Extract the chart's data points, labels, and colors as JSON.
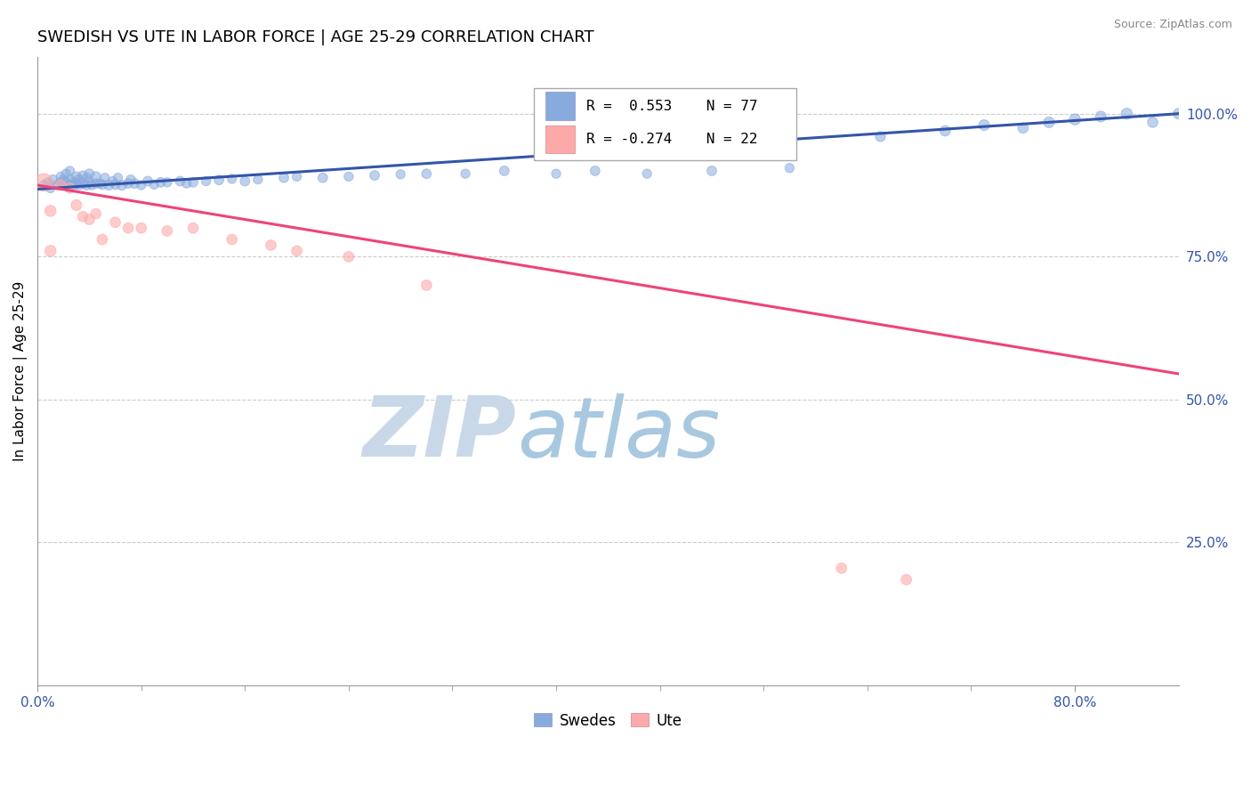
{
  "title": "SWEDISH VS UTE IN LABOR FORCE | AGE 25-29 CORRELATION CHART",
  "source": "Source: ZipAtlas.com",
  "xlabel_ticks_pos": [
    0.0,
    0.8
  ],
  "xlabel_ticks_labels": [
    "0.0%",
    "80.0%"
  ],
  "ylabel_label": "In Labor Force | Age 25-29",
  "right_yticks": [
    1.0,
    0.75,
    0.5,
    0.25
  ],
  "right_ytick_labels": [
    "100.0%",
    "75.0%",
    "50.0%",
    "25.0%"
  ],
  "xlim": [
    0.0,
    0.88
  ],
  "ylim": [
    0.0,
    1.1
  ],
  "legend_blue_label": "Swedes",
  "legend_pink_label": "Ute",
  "legend_r_blue": "R =  0.553",
  "legend_n_blue": "N = 77",
  "legend_r_pink": "R = -0.274",
  "legend_n_pink": "N = 22",
  "blue_color": "#88AADD",
  "pink_color": "#FFAAAA",
  "blue_line_color": "#3355AA",
  "pink_line_color": "#EE4477",
  "watermark_zip": "ZIP",
  "watermark_atlas": "atlas",
  "watermark_color_zip": "#C8D8E8",
  "watermark_color_atlas": "#A8C8E0",
  "background_color": "#FFFFFF",
  "grid_color": "#CCCCCC",
  "title_fontsize": 13,
  "axis_label_fontsize": 11,
  "tick_fontsize": 11,
  "blue_x": [
    0.005,
    0.008,
    0.01,
    0.012,
    0.015,
    0.018,
    0.018,
    0.02,
    0.02,
    0.022,
    0.022,
    0.025,
    0.025,
    0.025,
    0.028,
    0.028,
    0.03,
    0.03,
    0.032,
    0.032,
    0.035,
    0.035,
    0.038,
    0.038,
    0.04,
    0.04,
    0.042,
    0.045,
    0.045,
    0.048,
    0.05,
    0.052,
    0.055,
    0.058,
    0.06,
    0.062,
    0.065,
    0.07,
    0.072,
    0.075,
    0.08,
    0.085,
    0.09,
    0.095,
    0.1,
    0.11,
    0.115,
    0.12,
    0.13,
    0.14,
    0.15,
    0.16,
    0.17,
    0.19,
    0.2,
    0.22,
    0.24,
    0.26,
    0.28,
    0.3,
    0.33,
    0.36,
    0.4,
    0.43,
    0.47,
    0.52,
    0.58,
    0.65,
    0.7,
    0.73,
    0.76,
    0.78,
    0.8,
    0.82,
    0.84,
    0.86,
    0.88
  ],
  "blue_y": [
    0.875,
    0.88,
    0.87,
    0.885,
    0.875,
    0.88,
    0.89,
    0.875,
    0.885,
    0.88,
    0.895,
    0.875,
    0.885,
    0.9,
    0.875,
    0.88,
    0.878,
    0.89,
    0.875,
    0.885,
    0.878,
    0.892,
    0.875,
    0.888,
    0.88,
    0.895,
    0.875,
    0.878,
    0.89,
    0.878,
    0.876,
    0.888,
    0.875,
    0.882,
    0.876,
    0.888,
    0.875,
    0.878,
    0.885,
    0.878,
    0.875,
    0.882,
    0.876,
    0.88,
    0.88,
    0.882,
    0.878,
    0.88,
    0.882,
    0.884,
    0.886,
    0.882,
    0.885,
    0.888,
    0.89,
    0.888,
    0.89,
    0.892,
    0.894,
    0.895,
    0.895,
    0.9,
    0.895,
    0.9,
    0.895,
    0.9,
    0.905,
    0.96,
    0.97,
    0.98,
    0.975,
    0.985,
    0.99,
    0.995,
    1.0,
    0.985,
    1.0
  ],
  "blue_sizes": [
    60,
    55,
    60,
    55,
    60,
    60,
    55,
    60,
    55,
    60,
    55,
    65,
    60,
    55,
    60,
    55,
    65,
    60,
    55,
    60,
    65,
    55,
    60,
    55,
    65,
    60,
    55,
    60,
    65,
    55,
    60,
    55,
    65,
    55,
    60,
    55,
    65,
    60,
    55,
    60,
    55,
    60,
    55,
    60,
    55,
    60,
    55,
    60,
    55,
    60,
    55,
    60,
    55,
    60,
    55,
    60,
    55,
    60,
    55,
    60,
    55,
    60,
    55,
    60,
    55,
    60,
    55,
    65,
    70,
    75,
    70,
    75,
    80,
    75,
    80,
    70,
    75
  ],
  "pink_x": [
    0.005,
    0.01,
    0.01,
    0.018,
    0.025,
    0.03,
    0.035,
    0.04,
    0.045,
    0.05,
    0.06,
    0.07,
    0.08,
    0.1,
    0.12,
    0.15,
    0.18,
    0.2,
    0.24,
    0.3,
    0.62,
    0.67
  ],
  "pink_y": [
    0.88,
    0.83,
    0.76,
    0.875,
    0.87,
    0.84,
    0.82,
    0.815,
    0.825,
    0.78,
    0.81,
    0.8,
    0.8,
    0.795,
    0.8,
    0.78,
    0.77,
    0.76,
    0.75,
    0.7,
    0.205,
    0.185
  ],
  "pink_sizes": [
    200,
    80,
    80,
    75,
    70,
    75,
    70,
    70,
    70,
    70,
    70,
    70,
    70,
    70,
    70,
    70,
    70,
    70,
    70,
    70,
    70,
    70
  ],
  "blue_line_x": [
    0.0,
    0.88
  ],
  "blue_line_y": [
    0.868,
    1.0
  ],
  "pink_line_x": [
    0.0,
    0.88
  ],
  "pink_line_y": [
    0.875,
    0.545
  ],
  "xtick_minor_positions": [
    0.08,
    0.16,
    0.24,
    0.32,
    0.4,
    0.48,
    0.56,
    0.64,
    0.72
  ],
  "axis_color": "#999999"
}
